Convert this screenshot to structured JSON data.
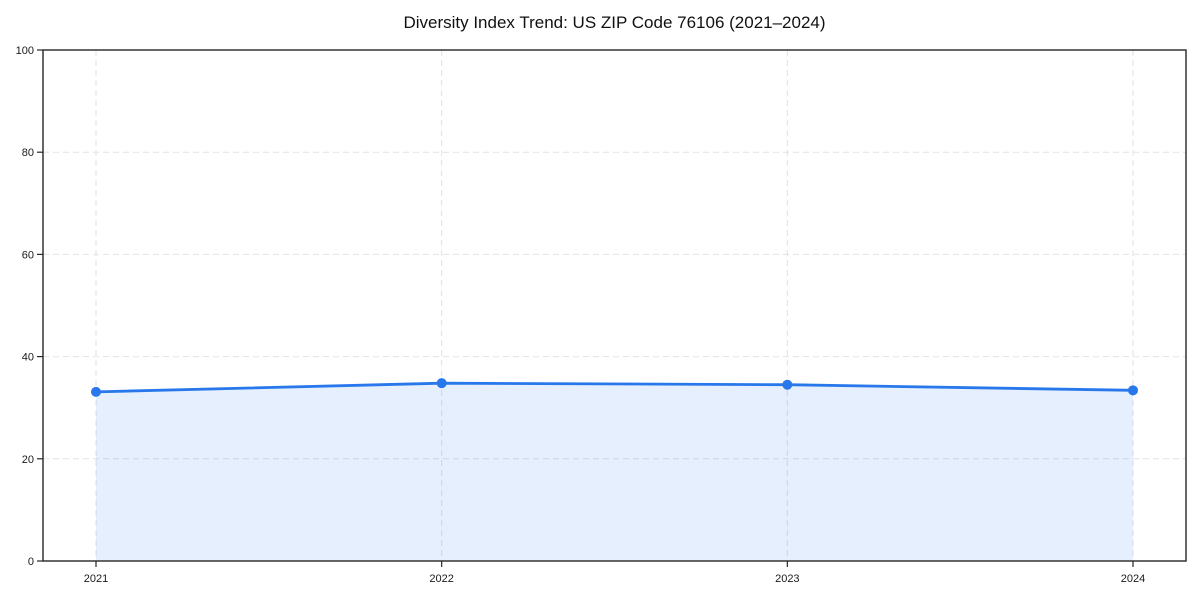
{
  "chart_data": {
    "type": "line",
    "title": "Diversity Index Trend: US ZIP Code 76106 (2021–2024)",
    "categories": [
      "2021",
      "2022",
      "2023",
      "2024"
    ],
    "series": [
      {
        "name": "Diversity Index",
        "values": [
          33.1,
          34.8,
          34.5,
          33.4
        ]
      }
    ],
    "xlabel": "",
    "ylabel": "",
    "ylim": [
      0,
      100
    ],
    "yticks": [
      0,
      20,
      40,
      60,
      80,
      100
    ],
    "grid": "dashed-both-axes",
    "legend_position": "none",
    "area_fill": true,
    "marker": "circle",
    "colors": {
      "line": "#2878eb",
      "marker": "#2878eb",
      "area_fill": "#2878eb",
      "grid": "#e2e2e2",
      "axis": "#262626",
      "tick_text": "#1a1a1a",
      "background": "#ffffff"
    }
  }
}
